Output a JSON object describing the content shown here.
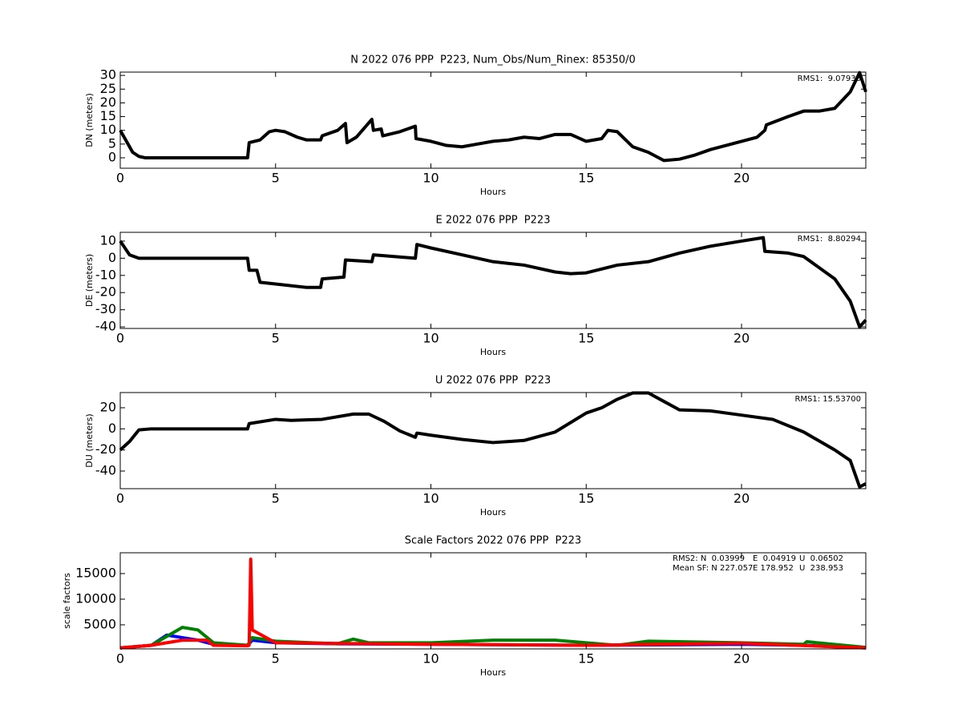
{
  "chart_data": [
    {
      "type": "line",
      "title": "N 2022 076 PPP  P223, Num_Obs/Num_Rinex: 85350/0",
      "xlabel": "Hours",
      "ylabel": "DN (meters)",
      "xlim": [
        0,
        24
      ],
      "xticks": [
        0,
        5,
        10,
        15,
        20
      ],
      "ylim": [
        -3.8,
        31.2
      ],
      "yticks": [
        0,
        5,
        10,
        15,
        20,
        25,
        30
      ],
      "annotations": [
        {
          "text": "RMS1:  9.07938",
          "color": "#0000ff"
        }
      ],
      "series": [
        {
          "color": "#000000",
          "x": [
            0,
            0.2,
            0.4,
            0.6,
            0.8,
            4.1,
            4.15,
            4.5,
            4.8,
            5,
            5.3,
            5.7,
            6,
            6.45,
            6.5,
            7,
            7.25,
            7.3,
            7.6,
            8.1,
            8.15,
            8.4,
            8.45,
            9,
            9.5,
            9.52,
            10,
            10.5,
            11,
            11.5,
            12,
            12.5,
            13,
            13.5,
            14,
            14.5,
            15,
            15.5,
            15.7,
            16,
            16.5,
            17,
            17.5,
            18,
            18.5,
            19,
            19.5,
            20,
            20.5,
            20.75,
            20.8,
            21.5,
            22,
            22.5,
            23,
            23.5,
            23.8,
            24
          ],
          "values": [
            10,
            6,
            2,
            0.5,
            0,
            0,
            5.5,
            6.5,
            9.5,
            10,
            9.5,
            7.5,
            6.5,
            6.5,
            8,
            10,
            12.5,
            5.5,
            7.5,
            14,
            10,
            10.5,
            8,
            9.5,
            11.5,
            7,
            6,
            4.5,
            4,
            5,
            6,
            6.5,
            7.5,
            7,
            8.5,
            8.5,
            6,
            7,
            10,
            9.5,
            4,
            2,
            -1,
            -0.5,
            1,
            3,
            4.5,
            6,
            7.5,
            10,
            12,
            15,
            17,
            17,
            18,
            24,
            31,
            24
          ]
        }
      ]
    },
    {
      "type": "line",
      "title": "E 2022 076 PPP  P223",
      "xlabel": "Hours",
      "ylabel": "DE (meters)",
      "xlim": [
        0,
        24
      ],
      "xticks": [
        0,
        5,
        10,
        15,
        20
      ],
      "ylim": [
        -40.9,
        15.1
      ],
      "yticks": [
        -40,
        -30,
        -20,
        -10,
        0,
        10
      ],
      "annotations": [
        {
          "text": "RMS1:  8.80294",
          "color": "#0000ff"
        }
      ],
      "series": [
        {
          "color": "#000000",
          "x": [
            0,
            0.3,
            0.6,
            4.1,
            4.15,
            4.4,
            4.5,
            5,
            6,
            6.45,
            6.5,
            7.2,
            7.25,
            8.1,
            8.15,
            9.5,
            9.55,
            10,
            11,
            12,
            13,
            14,
            14.5,
            15,
            16,
            17,
            18,
            19,
            20,
            20.7,
            20.75,
            21.5,
            22,
            23,
            23.5,
            23.8,
            24
          ],
          "values": [
            10,
            2,
            0,
            0,
            -7,
            -7,
            -14,
            -15,
            -17,
            -17,
            -12,
            -11,
            -1,
            -2,
            2,
            0,
            8,
            6,
            2,
            -2,
            -4,
            -8,
            -9,
            -8.5,
            -4,
            -2,
            3,
            7,
            10,
            12,
            4,
            3,
            1,
            -12,
            -25,
            -40,
            -36
          ]
        }
      ]
    },
    {
      "type": "line",
      "title": "U 2022 076 PPP  P223",
      "xlabel": "Hours",
      "ylabel": "DU (meters)",
      "xlim": [
        0,
        24
      ],
      "xticks": [
        0,
        5,
        10,
        15,
        20
      ],
      "ylim": [
        -56.7,
        34.4
      ],
      "yticks": [
        -40,
        -20,
        0,
        20
      ],
      "annotations": [
        {
          "text": "RMS1: 15.53700",
          "color": "#0000ff"
        }
      ],
      "series": [
        {
          "color": "#000000",
          "x": [
            0,
            0.3,
            0.6,
            1,
            4.1,
            4.15,
            5,
            5.5,
            6.5,
            7.5,
            8,
            8.5,
            9,
            9.5,
            9.55,
            10,
            11,
            12,
            13,
            14,
            15,
            15.5,
            16,
            16.5,
            17,
            17.5,
            18,
            19,
            20,
            21,
            22,
            23,
            23.5,
            23.8,
            24
          ],
          "values": [
            -20,
            -12,
            -1,
            0,
            0,
            5,
            9,
            8,
            9,
            14,
            14,
            7,
            -2,
            -8,
            -4,
            -6,
            -10,
            -13,
            -11,
            -3,
            15,
            20,
            28,
            34,
            34,
            26,
            18,
            17,
            13,
            9,
            -3,
            -20,
            -30,
            -55,
            -52
          ]
        }
      ]
    },
    {
      "type": "line",
      "title": "Scale Factors 2022 076 PPP  P223",
      "xlabel": "Hours",
      "ylabel": "scale factors",
      "xlim": [
        0,
        24
      ],
      "xticks": [
        0,
        5,
        10,
        15,
        20
      ],
      "ylim": [
        300,
        19060
      ],
      "yticks": [
        5000,
        10000,
        15000
      ],
      "annotations": [
        {
          "text": "RMS2: N  0.03999",
          "color": "#0000ff"
        },
        {
          "text": "E  0.04919",
          "color": "#008000"
        },
        {
          "text": "U  0.06502",
          "color": "#ff0000"
        },
        {
          "text": "Mean SF: N 227.057",
          "color": "#0000ff"
        },
        {
          "text": "E 178.952",
          "color": "#008000"
        },
        {
          "text": "U  238.953",
          "color": "#ff0000"
        }
      ],
      "series": [
        {
          "color": "#0000ff",
          "x": [
            0,
            1,
            1.5,
            2,
            2.5,
            3,
            4.1,
            4.25,
            5,
            7,
            10,
            15,
            20,
            22,
            24
          ],
          "values": [
            500,
            1000,
            3000,
            2500,
            2000,
            1200,
            1000,
            2000,
            1500,
            1300,
            1200,
            1000,
            1200,
            1000,
            500
          ]
        },
        {
          "color": "#008000",
          "x": [
            0,
            1,
            2,
            2.5,
            3,
            4.1,
            4.25,
            5,
            7,
            7.5,
            8,
            10,
            12,
            14,
            16,
            17,
            20,
            22,
            22.1,
            24
          ],
          "values": [
            500,
            1000,
            4500,
            4000,
            1500,
            1000,
            2500,
            1800,
            1300,
            2200,
            1500,
            1500,
            2000,
            2000,
            1000,
            1800,
            1500,
            1200,
            1700,
            600
          ]
        },
        {
          "color": "#ff0000",
          "x": [
            0,
            1,
            2,
            2.8,
            3,
            4.1,
            4.15,
            4.2,
            4.25,
            5,
            10,
            15,
            20,
            24
          ],
          "values": [
            500,
            1000,
            2000,
            2000,
            1000,
            900,
            1000,
            17800,
            4000,
            1500,
            1200,
            1000,
            1400,
            500
          ]
        }
      ]
    }
  ]
}
